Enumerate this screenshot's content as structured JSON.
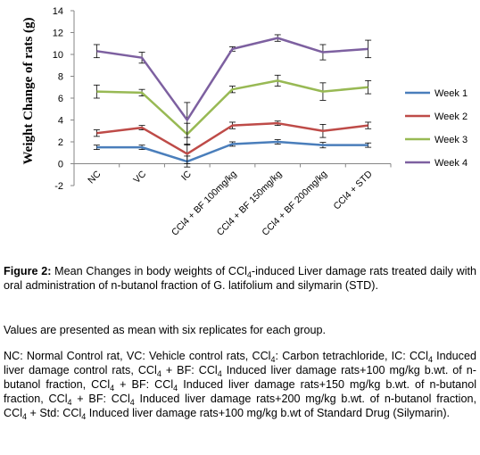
{
  "chart_data": {
    "type": "line",
    "categories": [
      "NC",
      "VC",
      "IC",
      "CCl4 + BF 100mg/kg",
      "CCl4 + BF 150mg/kg",
      "CCl4 + BF 200mg/kg",
      "CCl4 + STD"
    ],
    "ylabel": "Weight Change of rats (g)",
    "xlabel": "",
    "ylim": [
      -2,
      14
    ],
    "yticks": [
      -2,
      0,
      2,
      4,
      6,
      8,
      10,
      12,
      14
    ],
    "grid": false,
    "legend_position": "right",
    "error_bars": true,
    "series": [
      {
        "name": "Week 1",
        "color": "#4a7ebb",
        "values": [
          1.5,
          1.5,
          0.2,
          1.8,
          2.0,
          1.7,
          1.7
        ],
        "errors": [
          0.2,
          0.2,
          0.5,
          0.2,
          0.2,
          0.25,
          0.2
        ]
      },
      {
        "name": "Week 2",
        "color": "#be4b48",
        "values": [
          2.8,
          3.3,
          0.9,
          3.5,
          3.7,
          3.0,
          3.5
        ],
        "errors": [
          0.3,
          0.2,
          0.9,
          0.3,
          0.2,
          0.6,
          0.3
        ]
      },
      {
        "name": "Week 3",
        "color": "#98b954",
        "values": [
          6.6,
          6.5,
          2.7,
          6.8,
          7.6,
          6.6,
          7.0
        ],
        "errors": [
          0.6,
          0.3,
          1.0,
          0.3,
          0.5,
          0.8,
          0.6
        ]
      },
      {
        "name": "Week 4",
        "color": "#7d60a0",
        "values": [
          10.3,
          9.7,
          4.0,
          10.5,
          11.5,
          10.2,
          10.5
        ],
        "errors": [
          0.6,
          0.5,
          1.6,
          0.2,
          0.3,
          0.7,
          0.8
        ]
      }
    ]
  },
  "caption": {
    "label": "Figure 2:",
    "text_a": " Mean Changes in body weights of CCl",
    "sub": "4",
    "text_b": "-induced Liver damage rats treated daily with oral administration of n-butanol fraction of G. latifolium and silymarin (STD)."
  },
  "note": "Values are presented as mean with six replicates for each group.",
  "abbreviations": {
    "p1": "NC: Normal Control rat, VC: Vehicle control rats, CCl",
    "p2": ": Carbon tetrachloride, IC: CCl",
    "p3": " Induced liver damage control rats, CCl",
    "p4": " + BF: CCl",
    "p5": " Induced liver damage rats+100 mg/kg b.wt. of n-butanol fraction, CCl",
    "p6": " + BF: CCl",
    "p7": " Induced liver damage rats+150 mg/kg b.wt. of n-butanol fraction, CCl",
    "p8": " + BF: CCl",
    "p9": " Induced liver damage rats+200 mg/kg b.wt. of n-butanol fraction, CCl",
    "p10": " + Std: CCl",
    "p11": " Induced liver damage rats+100 mg/kg b.wt of Standard Drug (Silymarin).",
    "sub": "4"
  }
}
